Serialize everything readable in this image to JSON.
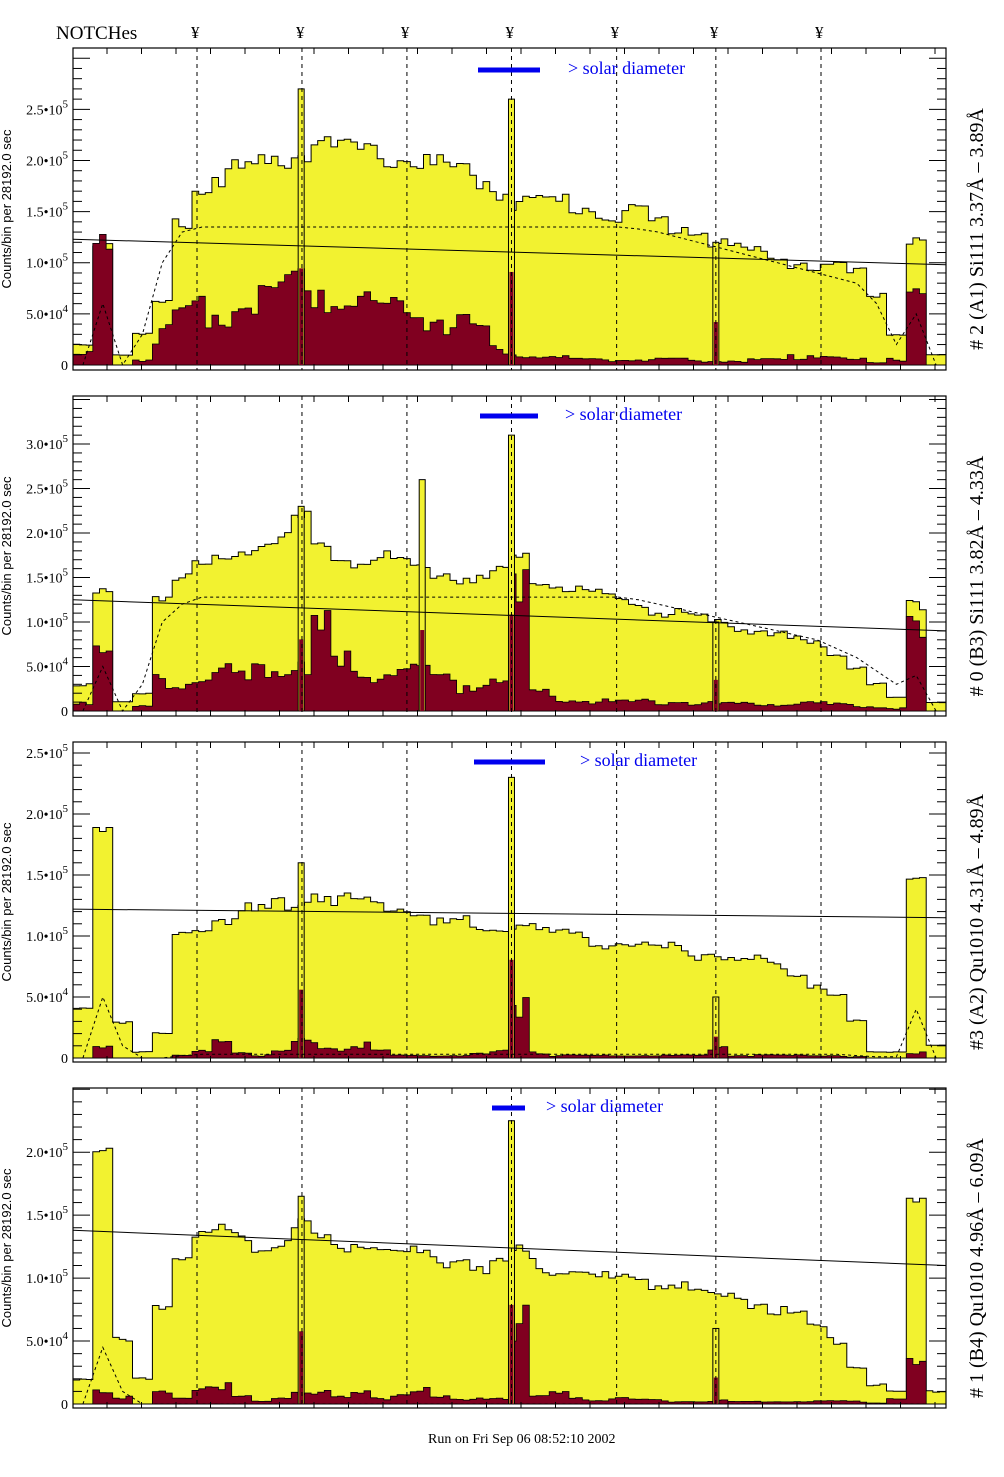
{
  "chart_data": {
    "type": "bar",
    "header_label": "NOTCHes",
    "notch_symbol": "¥",
    "notch_bins": [
      6.25,
      11.54,
      16.83,
      22.1,
      27.4,
      32.4,
      37.7
    ],
    "footer": "Run on Fri Sep 06 08:52:10 2002",
    "ylabel": "Counts/bin per  28192.0 sec",
    "annotation": "> solar diameter",
    "colors": {
      "total": "#f2f230",
      "red": "#800020",
      "annotation": "#0000ee"
    },
    "x_units": "bin index (44 coarse bins)",
    "panels": [
      {
        "title": "# 2 (A1) Si111  3.37Å – 3.89Å",
        "ylim": [
          0,
          310000
        ],
        "yticks": [
          {
            "v": 0,
            "t": "0"
          },
          {
            "v": 50000,
            "t": "5.0•10",
            "e": "4"
          },
          {
            "v": 100000,
            "t": "1.0•10",
            "e": "5"
          },
          {
            "v": 150000,
            "t": "1.5•10",
            "e": "5"
          },
          {
            "v": 200000,
            "t": "2.0•10",
            "e": "5"
          },
          {
            "v": 250000,
            "t": "2.5•10",
            "e": "5"
          }
        ],
        "total": [
          0.2,
          1.2,
          0.1,
          0.3,
          0.6,
          1.4,
          1.7,
          1.85,
          1.9,
          1.95,
          2.0,
          2.1,
          2.2,
          2.1,
          2.1,
          2.05,
          2.0,
          2.0,
          1.95,
          1.9,
          1.8,
          1.7,
          1.6,
          1.6,
          1.6,
          1.55,
          1.5,
          1.45,
          1.5,
          1.4,
          1.35,
          1.3,
          1.2,
          1.15,
          1.1,
          1.05,
          1.0,
          0.95,
          0.95,
          0.9,
          0.7,
          0.3,
          1.2,
          0.1
        ],
        "red": [
          0.1,
          1.0,
          0,
          0.05,
          0.3,
          0.45,
          0.5,
          0.55,
          0.6,
          0.7,
          0.75,
          0.8,
          0.75,
          0.7,
          0.65,
          0.6,
          0.55,
          0.5,
          0.45,
          0.4,
          0.35,
          0.15,
          0.1,
          0.08,
          0.07,
          0.06,
          0.06,
          0.05,
          0.05,
          0.05,
          0.05,
          0.04,
          0.04,
          0.04,
          0.05,
          0.05,
          0.08,
          0.1,
          0.08,
          0.05,
          0.02,
          0.05,
          0.8,
          0
        ],
        "spikes": [
          {
            "bin": 11.5,
            "v": 2.7
          },
          {
            "bin": 22.1,
            "v": 2.6
          },
          {
            "bin": 32.4,
            "v": 1.2
          }
        ],
        "line": [
          1.23,
          0.98
        ],
        "model": [
          0,
          0.6,
          0,
          0.3,
          1.0,
          1.3,
          1.35,
          1.35,
          1.35,
          1.35,
          1.35,
          1.35,
          1.35,
          1.35,
          1.35,
          1.35,
          1.35,
          1.35,
          1.35,
          1.35,
          1.35,
          1.35,
          1.35,
          1.35,
          1.35,
          1.35,
          1.35,
          1.35,
          1.33,
          1.3,
          1.25,
          1.2,
          1.15,
          1.1,
          1.05,
          1.0,
          0.95,
          0.9,
          0.85,
          0.8,
          0.6,
          0.2,
          0.5,
          0
        ],
        "scale": 100000
      },
      {
        "title": "# 0 (B3) Si111  3.82Å – 4.33Å",
        "ylim": [
          0,
          354000
        ],
        "yticks": [
          {
            "v": 0,
            "t": "0"
          },
          {
            "v": 50000,
            "t": "5.0•10",
            "e": "4"
          },
          {
            "v": 100000,
            "t": "1.0•10",
            "e": "5"
          },
          {
            "v": 150000,
            "t": "1.5•10",
            "e": "5"
          },
          {
            "v": 200000,
            "t": "2.0•10",
            "e": "5"
          },
          {
            "v": 250000,
            "t": "2.5•10",
            "e": "5"
          },
          {
            "v": 300000,
            "t": "3.0•10",
            "e": "5"
          }
        ],
        "total": [
          0.3,
          1.3,
          0.1,
          0.2,
          1.3,
          1.5,
          1.6,
          1.7,
          1.8,
          1.9,
          2.0,
          2.15,
          1.8,
          1.75,
          1.7,
          1.7,
          1.65,
          1.6,
          1.55,
          1.5,
          1.45,
          1.55,
          1.7,
          1.45,
          1.4,
          1.35,
          1.3,
          1.25,
          1.2,
          1.1,
          1.1,
          1.05,
          1.0,
          0.95,
          0.9,
          0.85,
          0.8,
          0.75,
          0.65,
          0.5,
          0.3,
          0.15,
          1.2,
          0.1
        ],
        "red": [
          0.1,
          1.0,
          0,
          0.05,
          0.35,
          0.3,
          0.35,
          0.4,
          0.35,
          0.4,
          0.5,
          0.6,
          0.9,
          0.5,
          0.4,
          0.45,
          0.5,
          0.4,
          0.35,
          0.3,
          0.3,
          0.4,
          1.2,
          0.2,
          0.15,
          0.15,
          0.12,
          0.1,
          0.1,
          0.1,
          0.1,
          0.08,
          0.08,
          0.08,
          0.08,
          0.08,
          0.08,
          0.08,
          0.07,
          0.06,
          0.05,
          0.03,
          0.8,
          0
        ],
        "spikes": [
          {
            "bin": 11.5,
            "v": 2.3
          },
          {
            "bin": 17.6,
            "v": 2.6
          },
          {
            "bin": 22.1,
            "v": 3.1
          },
          {
            "bin": 32.4,
            "v": 1.0
          }
        ],
        "line": [
          1.25,
          0.9
        ],
        "model": [
          0,
          0.5,
          0,
          0.3,
          1.0,
          1.2,
          1.28,
          1.28,
          1.28,
          1.28,
          1.28,
          1.28,
          1.28,
          1.28,
          1.28,
          1.28,
          1.28,
          1.28,
          1.28,
          1.28,
          1.28,
          1.28,
          1.28,
          1.28,
          1.28,
          1.28,
          1.28,
          1.28,
          1.25,
          1.2,
          1.15,
          1.1,
          1.05,
          1.0,
          0.95,
          0.9,
          0.85,
          0.8,
          0.7,
          0.6,
          0.45,
          0.3,
          0.4,
          0
        ],
        "scale": 100000
      },
      {
        "title": "#3 (A2) Qu1010  4.31Å – 4.89Å",
        "ylim": [
          0,
          259000
        ],
        "yticks": [
          {
            "v": 0,
            "t": "0"
          },
          {
            "v": 50000,
            "t": "5.0•10",
            "e": "4"
          },
          {
            "v": 100000,
            "t": "1.0•10",
            "e": "5"
          },
          {
            "v": 150000,
            "t": "1.5•10",
            "e": "5"
          },
          {
            "v": 200000,
            "t": "2.0•10",
            "e": "5"
          },
          {
            "v": 250000,
            "t": "2.5•10",
            "e": "5"
          }
        ],
        "total": [
          0.4,
          1.9,
          0.3,
          0.05,
          0.2,
          1.0,
          1.1,
          1.15,
          1.2,
          1.2,
          1.25,
          1.3,
          1.35,
          1.3,
          1.3,
          1.25,
          1.25,
          1.2,
          1.1,
          1.1,
          1.05,
          1.05,
          1.1,
          1.05,
          1.0,
          1.0,
          0.95,
          0.95,
          0.9,
          0.9,
          0.9,
          0.85,
          0.85,
          0.8,
          0.8,
          0.75,
          0.7,
          0.6,
          0.5,
          0.3,
          0.05,
          0.05,
          1.5,
          0.1
        ],
        "red": [
          0,
          0.08,
          0,
          0,
          0,
          0.02,
          0.05,
          0.15,
          0.05,
          0.02,
          0.05,
          0.12,
          0.1,
          0.08,
          0.1,
          0.05,
          0.02,
          0.02,
          0.02,
          0.02,
          0.03,
          0.05,
          0.5,
          0.05,
          0.02,
          0.02,
          0.02,
          0.02,
          0.02,
          0.02,
          0.02,
          0.02,
          0.1,
          0.02,
          0.02,
          0.02,
          0.02,
          0.02,
          0.02,
          0.01,
          0,
          0,
          0.05,
          0
        ],
        "spikes": [
          {
            "bin": 11.5,
            "v": 1.6
          },
          {
            "bin": 22.1,
            "v": 2.3
          },
          {
            "bin": 32.4,
            "v": 0.5
          }
        ],
        "line": [
          1.22,
          1.15
        ],
        "model": [
          0,
          0.5,
          0.1,
          0,
          0,
          0.02,
          0.03,
          0.03,
          0.03,
          0.03,
          0.03,
          0.03,
          0.03,
          0.03,
          0.03,
          0.03,
          0.03,
          0.03,
          0.03,
          0.03,
          0.03,
          0.03,
          0.03,
          0.03,
          0.03,
          0.03,
          0.03,
          0.03,
          0.03,
          0.03,
          0.03,
          0.03,
          0.03,
          0.03,
          0.03,
          0.03,
          0.03,
          0.03,
          0.03,
          0.02,
          0.01,
          0.01,
          0.4,
          0
        ],
        "scale": 100000
      },
      {
        "title": "# 1 (B4) Qu1010 4.96Å – 6.09Å",
        "ylim": [
          0,
          251000
        ],
        "yticks": [
          {
            "v": 0,
            "t": "0"
          },
          {
            "v": 50000,
            "t": "5.0•10",
            "e": "4"
          },
          {
            "v": 100000,
            "t": "1.0•10",
            "e": "5"
          },
          {
            "v": 150000,
            "t": "1.5•10",
            "e": "5"
          },
          {
            "v": 200000,
            "t": "2.0•10",
            "e": "5"
          }
        ],
        "total": [
          0.2,
          2.0,
          0.5,
          0.2,
          0.8,
          1.2,
          1.3,
          1.35,
          1.3,
          1.25,
          1.3,
          1.4,
          1.3,
          1.25,
          1.3,
          1.25,
          1.2,
          1.2,
          1.15,
          1.15,
          1.1,
          1.1,
          1.2,
          1.1,
          1.05,
          1.1,
          1.0,
          1.0,
          1.0,
          0.95,
          0.95,
          0.9,
          0.85,
          0.85,
          0.8,
          0.75,
          0.7,
          0.6,
          0.5,
          0.3,
          0.15,
          0.1,
          1.6,
          0.1
        ],
        "red": [
          0,
          0.12,
          0.05,
          0,
          0.08,
          0.05,
          0.15,
          0.15,
          0.05,
          0.02,
          0.05,
          0.1,
          0.08,
          0.05,
          0.08,
          0.05,
          0.08,
          0.1,
          0.05,
          0.03,
          0.05,
          0.05,
          0.6,
          0.05,
          0.08,
          0.05,
          0.03,
          0.05,
          0.03,
          0.03,
          0.02,
          0.02,
          0.03,
          0.02,
          0.02,
          0.02,
          0.02,
          0.02,
          0.02,
          0.02,
          0.01,
          0.05,
          0.3,
          0
        ],
        "spikes": [
          {
            "bin": 11.5,
            "v": 1.65
          },
          {
            "bin": 22.1,
            "v": 2.25
          },
          {
            "bin": 32.4,
            "v": 0.6
          }
        ],
        "line": [
          1.38,
          1.1
        ],
        "model": [
          0,
          0.45,
          0.1,
          0,
          0,
          0,
          0,
          0,
          0,
          0,
          0,
          0,
          0,
          0,
          0,
          0,
          0,
          0,
          0,
          0,
          0,
          0,
          0,
          0,
          0,
          0,
          0,
          0,
          0,
          0,
          0,
          0,
          0,
          0,
          0,
          0,
          0,
          0,
          0,
          0,
          0,
          0,
          0,
          0
        ],
        "scale": 100000
      }
    ]
  }
}
